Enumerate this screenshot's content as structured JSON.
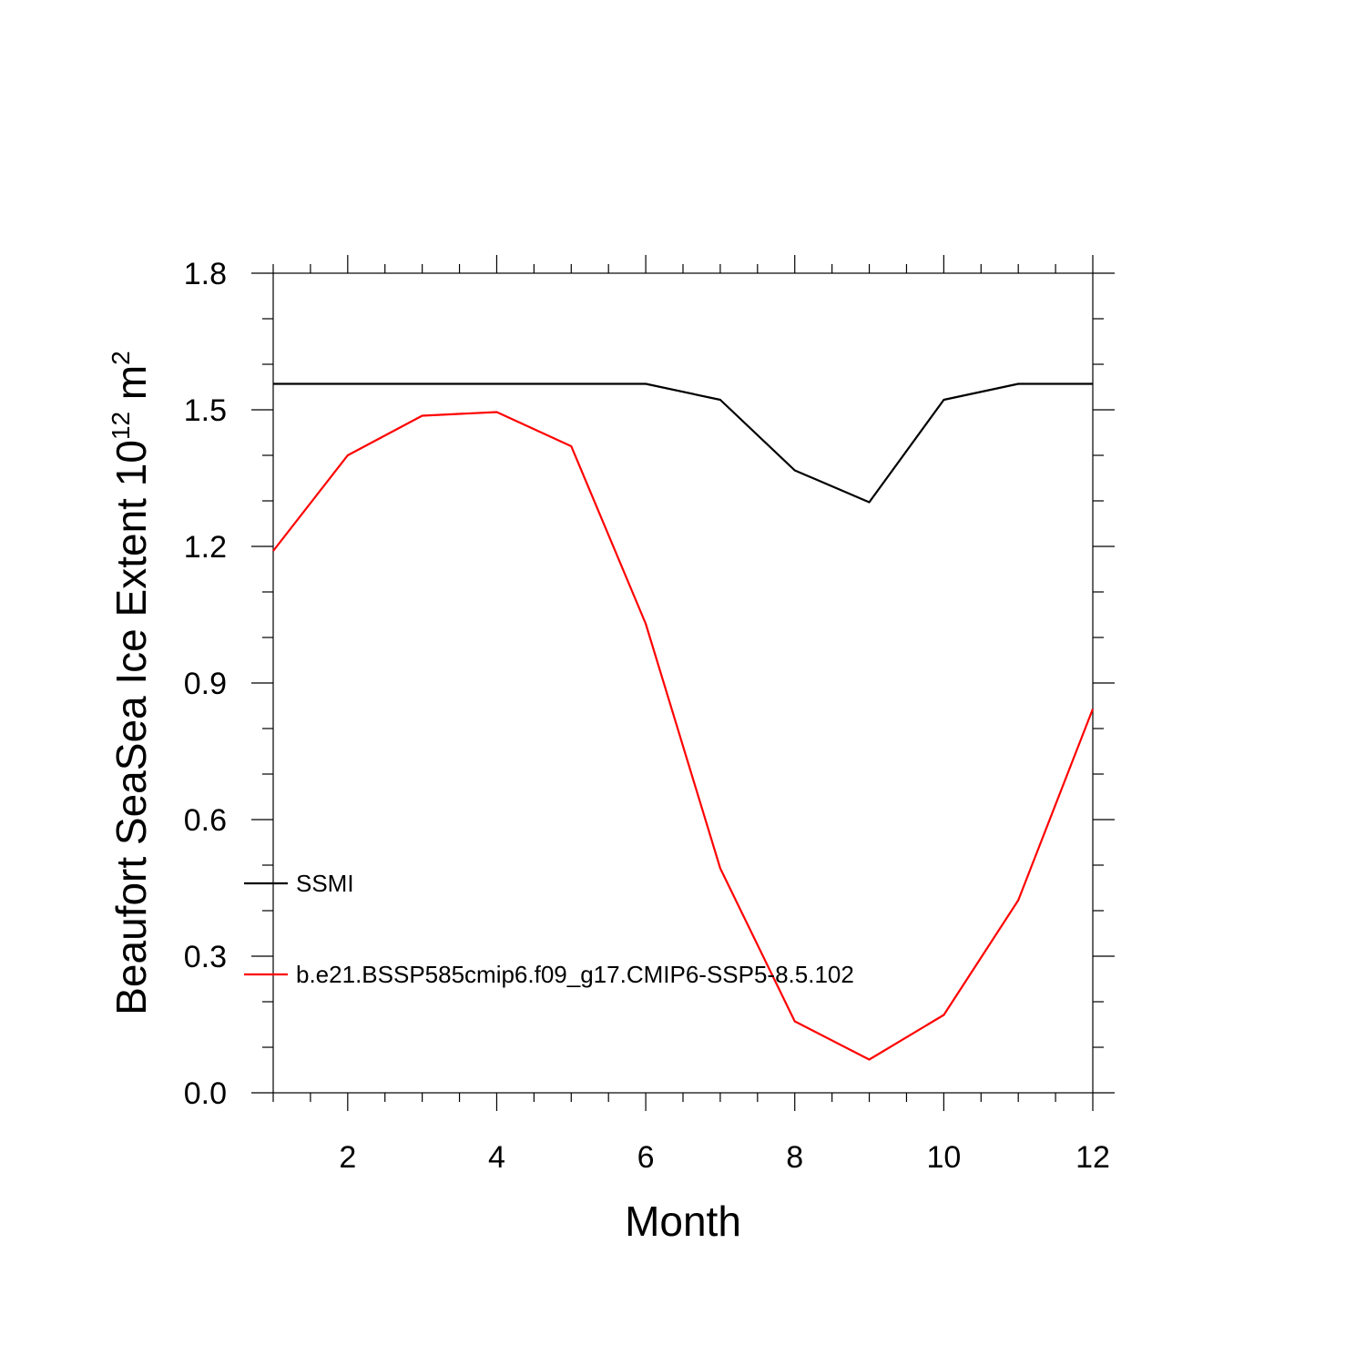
{
  "chart_data": {
    "type": "line",
    "title": "",
    "xlabel": "Month",
    "ylabel": "Beaufort SeaSea Ice Extent 10",
    "ylabel_exponent": "12",
    "ylabel_unit": " m",
    "ylabel_unit_exponent": "2",
    "xlim": [
      1,
      12
    ],
    "ylim": [
      0.0,
      1.8
    ],
    "x_ticks": [
      2,
      4,
      6,
      8,
      10,
      12
    ],
    "x_tick_labels": [
      "2",
      "4",
      "6",
      "8",
      "10",
      "12"
    ],
    "y_ticks": [
      0.0,
      0.3,
      0.6,
      0.9,
      1.2,
      1.5,
      1.8
    ],
    "y_tick_labels": [
      "0.0",
      "0.3",
      "0.6",
      "0.9",
      "1.2",
      "1.5",
      "1.8"
    ],
    "x_minor_step": 0.5,
    "y_minor_step": 0.1,
    "grid": false,
    "legend_position": "inside-bottom-left",
    "x": [
      1,
      2,
      3,
      4,
      5,
      6,
      7,
      8,
      9,
      10,
      11,
      12
    ],
    "series": [
      {
        "name": "SSMI",
        "color": "#000000",
        "values": [
          1.557,
          1.557,
          1.557,
          1.557,
          1.557,
          1.557,
          1.522,
          1.367,
          1.297,
          1.522,
          1.557,
          1.557
        ]
      },
      {
        "name": "b.e21.BSSP585cmip6.f09_g17.CMIP6-SSP5-8.5.102",
        "color": "#ff0000",
        "values": [
          1.19,
          1.4,
          1.487,
          1.495,
          1.42,
          1.03,
          0.493,
          0.157,
          0.073,
          0.171,
          0.423,
          0.843
        ]
      }
    ]
  }
}
